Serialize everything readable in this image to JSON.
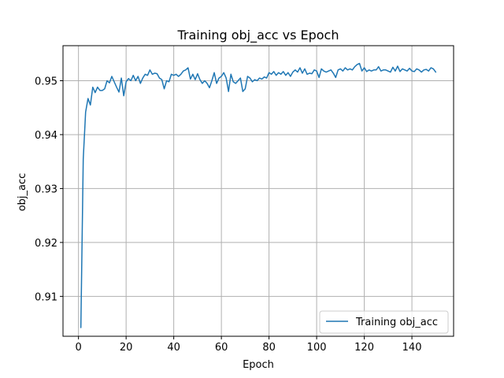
{
  "chart_data": {
    "type": "line",
    "title": "Training obj_acc vs Epoch",
    "xlabel": "Epoch",
    "ylabel": "obj_acc",
    "xlim": [
      -6.5,
      157.5
    ],
    "ylim": [
      0.9026,
      0.9565
    ],
    "xticks": [
      0,
      20,
      40,
      60,
      80,
      100,
      120,
      140
    ],
    "yticks": [
      0.91,
      0.92,
      0.93,
      0.94,
      0.95
    ],
    "ytick_labels": [
      "0.91",
      "0.92",
      "0.93",
      "0.94",
      "0.95"
    ],
    "grid": true,
    "legend_position": "lower-right",
    "color": "#1f77b4",
    "series": [
      {
        "name": "Training obj_acc",
        "x": [
          1,
          2,
          3,
          4,
          5,
          6,
          7,
          8,
          9,
          10,
          11,
          12,
          13,
          14,
          15,
          16,
          17,
          18,
          19,
          20,
          21,
          22,
          23,
          24,
          25,
          26,
          27,
          28,
          29,
          30,
          31,
          32,
          33,
          34,
          35,
          36,
          37,
          38,
          39,
          40,
          41,
          42,
          43,
          44,
          45,
          46,
          47,
          48,
          49,
          50,
          51,
          52,
          53,
          54,
          55,
          56,
          57,
          58,
          59,
          60,
          61,
          62,
          63,
          64,
          65,
          66,
          67,
          68,
          69,
          70,
          71,
          72,
          73,
          74,
          75,
          76,
          77,
          78,
          79,
          80,
          81,
          82,
          83,
          84,
          85,
          86,
          87,
          88,
          89,
          90,
          91,
          92,
          93,
          94,
          95,
          96,
          97,
          98,
          99,
          100,
          101,
          102,
          103,
          104,
          105,
          106,
          107,
          108,
          109,
          110,
          111,
          112,
          113,
          114,
          115,
          116,
          117,
          118,
          119,
          120,
          121,
          122,
          123,
          124,
          125,
          126,
          127,
          128,
          129,
          130,
          131,
          132,
          133,
          134,
          135,
          136,
          137,
          138,
          139,
          140,
          141,
          142,
          143,
          144,
          145,
          146,
          147,
          148,
          149,
          150
        ],
        "values": [
          0.9042,
          0.9355,
          0.9442,
          0.9467,
          0.9455,
          0.9488,
          0.9478,
          0.9488,
          0.9482,
          0.9482,
          0.9485,
          0.95,
          0.9496,
          0.9508,
          0.9498,
          0.9488,
          0.9479,
          0.9505,
          0.9472,
          0.9498,
          0.9504,
          0.95,
          0.951,
          0.95,
          0.9508,
          0.9495,
          0.9505,
          0.9512,
          0.951,
          0.952,
          0.9512,
          0.9514,
          0.9513,
          0.9505,
          0.9502,
          0.9485,
          0.95,
          0.9498,
          0.9512,
          0.951,
          0.9512,
          0.9508,
          0.9512,
          0.9518,
          0.952,
          0.9524,
          0.9503,
          0.9512,
          0.9502,
          0.9513,
          0.9502,
          0.9495,
          0.95,
          0.9495,
          0.9487,
          0.95,
          0.9515,
          0.9495,
          0.9505,
          0.9508,
          0.9515,
          0.9505,
          0.948,
          0.9512,
          0.9498,
          0.9495,
          0.95,
          0.9505,
          0.948,
          0.9485,
          0.9508,
          0.9505,
          0.9498,
          0.9502,
          0.95,
          0.9505,
          0.9503,
          0.9507,
          0.9505,
          0.9515,
          0.9512,
          0.9517,
          0.951,
          0.9515,
          0.9512,
          0.9517,
          0.951,
          0.9515,
          0.9508,
          0.9516,
          0.952,
          0.9516,
          0.9524,
          0.9514,
          0.9522,
          0.9512,
          0.9514,
          0.9513,
          0.952,
          0.9518,
          0.9506,
          0.9522,
          0.9518,
          0.9516,
          0.9518,
          0.952,
          0.9514,
          0.9506,
          0.952,
          0.9522,
          0.9518,
          0.9524,
          0.952,
          0.9522,
          0.952,
          0.9526,
          0.953,
          0.9532,
          0.9518,
          0.9524,
          0.9517,
          0.952,
          0.9518,
          0.952,
          0.952,
          0.9526,
          0.9518,
          0.952,
          0.952,
          0.9518,
          0.9516,
          0.9525,
          0.9518,
          0.9527,
          0.9517,
          0.9522,
          0.952,
          0.9518,
          0.9523,
          0.9518,
          0.9517,
          0.9522,
          0.952,
          0.9516,
          0.952,
          0.9521,
          0.9518,
          0.9524,
          0.9522,
          0.9516
        ]
      }
    ]
  }
}
